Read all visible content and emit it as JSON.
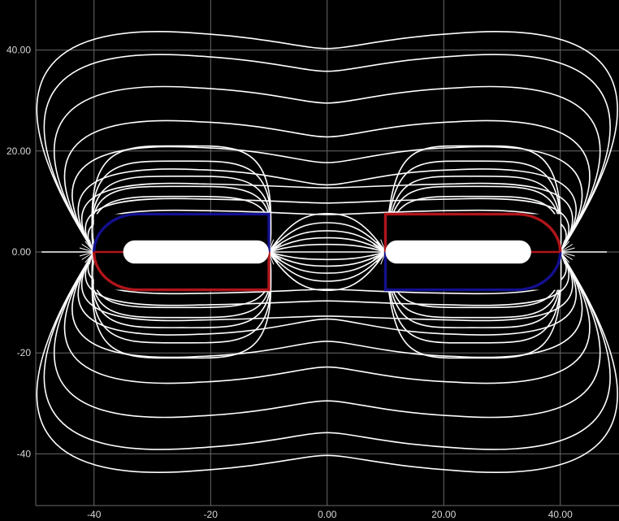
{
  "chart_data": {
    "type": "field-lines",
    "title": "",
    "xlabel": "",
    "ylabel": "",
    "xlim": [
      -50,
      50
    ],
    "ylim": [
      -50,
      50
    ],
    "grid": true,
    "background": "#000000",
    "line_color": "#ffffff",
    "colors": {
      "red": "#b0151a",
      "blue": "#13108f"
    },
    "x_ticks": [
      {
        "value": -40,
        "label": "-40"
      },
      {
        "value": -20,
        "label": "-20"
      },
      {
        "value": 0,
        "label": "0.00"
      },
      {
        "value": 20,
        "label": "20.00"
      },
      {
        "value": 40,
        "label": "40.00"
      }
    ],
    "y_ticks": [
      {
        "value": 40,
        "label": "40.00"
      },
      {
        "value": 20,
        "label": "20.00"
      },
      {
        "value": 0,
        "label": "0.00"
      },
      {
        "value": -20,
        "label": "-20"
      },
      {
        "value": -40,
        "label": "-40"
      }
    ],
    "magnets": [
      {
        "name": "left",
        "x": [
          -40,
          -10
        ],
        "y": [
          -7.5,
          7.5
        ],
        "rounded_side": "left",
        "top_color": "blue",
        "bottom_color": "red",
        "core_x": [
          -35,
          -10
        ],
        "core_half_height": 2.3
      },
      {
        "name": "right",
        "x": [
          10,
          40
        ],
        "y": [
          -7.5,
          7.5
        ],
        "rounded_side": "right",
        "top_color": "red",
        "bottom_color": "blue",
        "core_x": [
          10,
          35
        ],
        "core_half_height": 2.3
      }
    ],
    "field_lines": {
      "outer_crossings_y": [
        8.2,
        10.5,
        13.5,
        16.3,
        20.7,
        25.8,
        32.5,
        38.8,
        43.3
      ],
      "inner_crossings_y": [
        1.5,
        2.8,
        4.2,
        5.8,
        7.6
      ],
      "side_loops_reach_y": [
        11,
        13,
        15,
        18,
        21
      ]
    }
  }
}
